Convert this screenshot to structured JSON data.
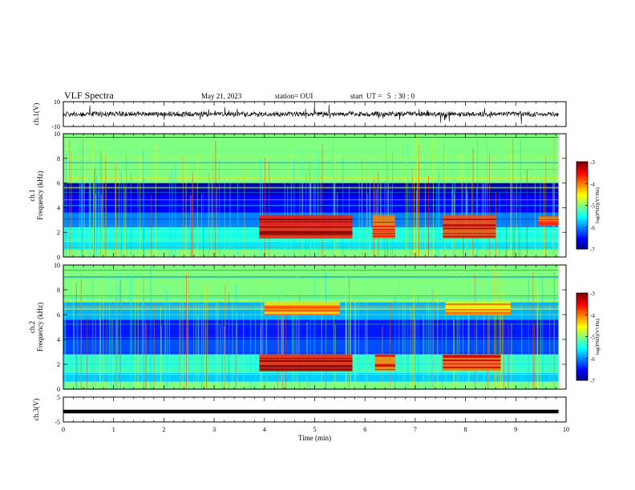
{
  "header": {
    "title": "VLF Spectra",
    "date": "May 21, 2023",
    "station": "station= OUI",
    "start": "start  UT =   5  : 30 : 0"
  },
  "chart_data": [
    {
      "id": "ch1_waveform",
      "type": "line",
      "ylabel": "ch.1(V)",
      "ylim": [
        -10,
        10
      ],
      "yticks": [
        -10,
        10
      ],
      "xlim": [
        0,
        10
      ],
      "x_extent": [
        0,
        9.85
      ],
      "baseline": 0,
      "trace_color": "#000000"
    },
    {
      "id": "ch1_spectrogram",
      "type": "heatmap",
      "ylabel": "ch.1\nFrequency  (kHz)",
      "ylim": [
        0,
        10
      ],
      "yticks": [
        0,
        2,
        4,
        6,
        8,
        10
      ],
      "xlim": [
        0,
        10
      ],
      "x_extent": [
        0,
        9.85
      ],
      "colorbar": {
        "label": "log(PSD)(V²/Hz)",
        "range": [
          -7,
          -3
        ],
        "ticks": [
          -3,
          -4,
          -5,
          -6,
          -7
        ]
      },
      "bands": [
        {
          "f": [
            0.0,
            0.6
          ],
          "level": -5.0
        },
        {
          "f": [
            0.6,
            1.2
          ],
          "level": -5.6
        },
        {
          "f": [
            1.2,
            2.6
          ],
          "level": -5.4
        },
        {
          "f": [
            2.6,
            3.6
          ],
          "level": -6.0
        },
        {
          "f": [
            3.6,
            5.0
          ],
          "level": -6.5
        },
        {
          "f": [
            5.0,
            6.0
          ],
          "level": -6.8
        },
        {
          "f": [
            6.0,
            10.0
          ],
          "level": -5.0
        }
      ],
      "events": [
        {
          "t": [
            3.9,
            5.75
          ],
          "f": [
            1.5,
            3.4
          ],
          "level": -3.6
        },
        {
          "t": [
            6.15,
            6.6
          ],
          "f": [
            1.5,
            3.4
          ],
          "level": -4.0
        },
        {
          "t": [
            7.55,
            8.6
          ],
          "f": [
            1.5,
            3.4
          ],
          "level": -3.8
        },
        {
          "t": [
            9.45,
            9.85
          ],
          "f": [
            2.6,
            3.3
          ],
          "level": -4.2
        }
      ]
    },
    {
      "id": "ch2_spectrogram",
      "type": "heatmap",
      "ylabel": "ch.2\nFrequency  (kHz)",
      "ylim": [
        0,
        10
      ],
      "yticks": [
        0,
        2,
        4,
        6,
        8,
        10
      ],
      "xlim": [
        0,
        10
      ],
      "x_extent": [
        0,
        9.85
      ],
      "colorbar": {
        "label": "log(PSD)(V²/Hz)",
        "range": [
          -7,
          -3
        ],
        "ticks": [
          -3,
          -4,
          -5,
          -6,
          -7
        ]
      },
      "bands": [
        {
          "f": [
            0.0,
            0.6
          ],
          "level": -5.0
        },
        {
          "f": [
            0.6,
            1.3
          ],
          "level": -5.7
        },
        {
          "f": [
            1.3,
            2.8
          ],
          "level": -5.3
        },
        {
          "f": [
            2.8,
            4.0
          ],
          "level": -6.2
        },
        {
          "f": [
            4.0,
            5.6
          ],
          "level": -6.4
        },
        {
          "f": [
            5.6,
            7.0
          ],
          "level": -5.8
        },
        {
          "f": [
            7.0,
            10.0
          ],
          "level": -5.0
        }
      ],
      "events": [
        {
          "t": [
            3.9,
            5.75
          ],
          "f": [
            1.5,
            2.8
          ],
          "level": -3.6
        },
        {
          "t": [
            4.0,
            5.5
          ],
          "f": [
            6.0,
            7.0
          ],
          "level": -4.4
        },
        {
          "t": [
            6.2,
            6.6
          ],
          "f": [
            1.5,
            2.8
          ],
          "level": -4.0
        },
        {
          "t": [
            7.55,
            8.7
          ],
          "f": [
            1.5,
            2.8
          ],
          "level": -3.9
        },
        {
          "t": [
            7.6,
            8.9
          ],
          "f": [
            6.0,
            7.0
          ],
          "level": -4.5
        }
      ]
    },
    {
      "id": "ch3_waveform",
      "type": "line",
      "ylabel": "ch.3(V)",
      "ylim": [
        -5,
        5
      ],
      "yticks": [
        -5,
        5
      ],
      "xlim": [
        0,
        10
      ],
      "x_extent": [
        0,
        9.85
      ],
      "constant_value": -0.8,
      "trace_color": "#000000",
      "xlabel": "Time  (min)",
      "xticks": [
        0,
        1,
        2,
        3,
        4,
        5,
        6,
        7,
        8,
        9,
        10
      ]
    }
  ]
}
